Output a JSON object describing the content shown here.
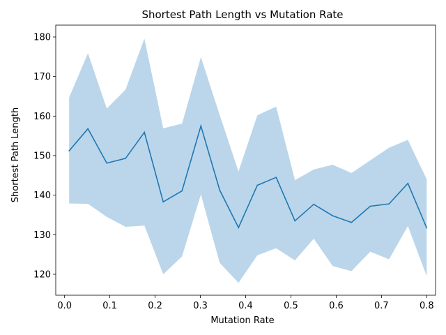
{
  "chart_data": {
    "type": "line",
    "title": "Shortest Path Length vs Mutation Rate",
    "xlabel": "Mutation Rate",
    "ylabel": "Shortest Path Length",
    "xlim": [
      -0.0195,
      0.8195
    ],
    "ylim": [
      114.7,
      183.0
    ],
    "xticks": [
      0.0,
      0.1,
      0.2,
      0.3,
      0.4,
      0.5,
      0.6,
      0.7,
      0.8
    ],
    "xtick_labels": [
      "0.0",
      "0.1",
      "0.2",
      "0.3",
      "0.4",
      "0.5",
      "0.6",
      "0.7",
      "0.8"
    ],
    "yticks": [
      120,
      130,
      140,
      150,
      160,
      170,
      180
    ],
    "ytick_labels": [
      "120",
      "130",
      "140",
      "150",
      "160",
      "170",
      "180"
    ],
    "grid": false,
    "legend": false,
    "colors": {
      "line": "#1f77b4",
      "band": "#bbd6ea"
    },
    "x": [
      0.01,
      0.0516,
      0.0932,
      0.1347,
      0.1763,
      0.2179,
      0.2595,
      0.3011,
      0.3426,
      0.3842,
      0.4258,
      0.4674,
      0.5089,
      0.5505,
      0.5921,
      0.6337,
      0.6753,
      0.7168,
      0.7584,
      0.8
    ],
    "series": [
      {
        "values": [
          151.2,
          156.8,
          148.1,
          149.3,
          155.9,
          138.3,
          141.1,
          157.5,
          141.3,
          131.8,
          142.5,
          144.5,
          133.5,
          137.7,
          134.8,
          133.1,
          137.2,
          137.8,
          143.0,
          131.7
        ],
        "upper": [
          164.7,
          175.9,
          161.9,
          166.7,
          179.6,
          156.9,
          158.1,
          174.9,
          160.3,
          146.0,
          160.2,
          162.4,
          143.8,
          146.5,
          147.7,
          145.6,
          148.8,
          152.0,
          154.0,
          144.0
        ],
        "lower": [
          137.9,
          137.8,
          134.5,
          132.0,
          132.3,
          120.0,
          124.5,
          140.2,
          122.9,
          117.8,
          124.8,
          126.6,
          123.5,
          129.0,
          122.1,
          120.8,
          125.7,
          123.8,
          132.2,
          119.5
        ]
      }
    ]
  }
}
